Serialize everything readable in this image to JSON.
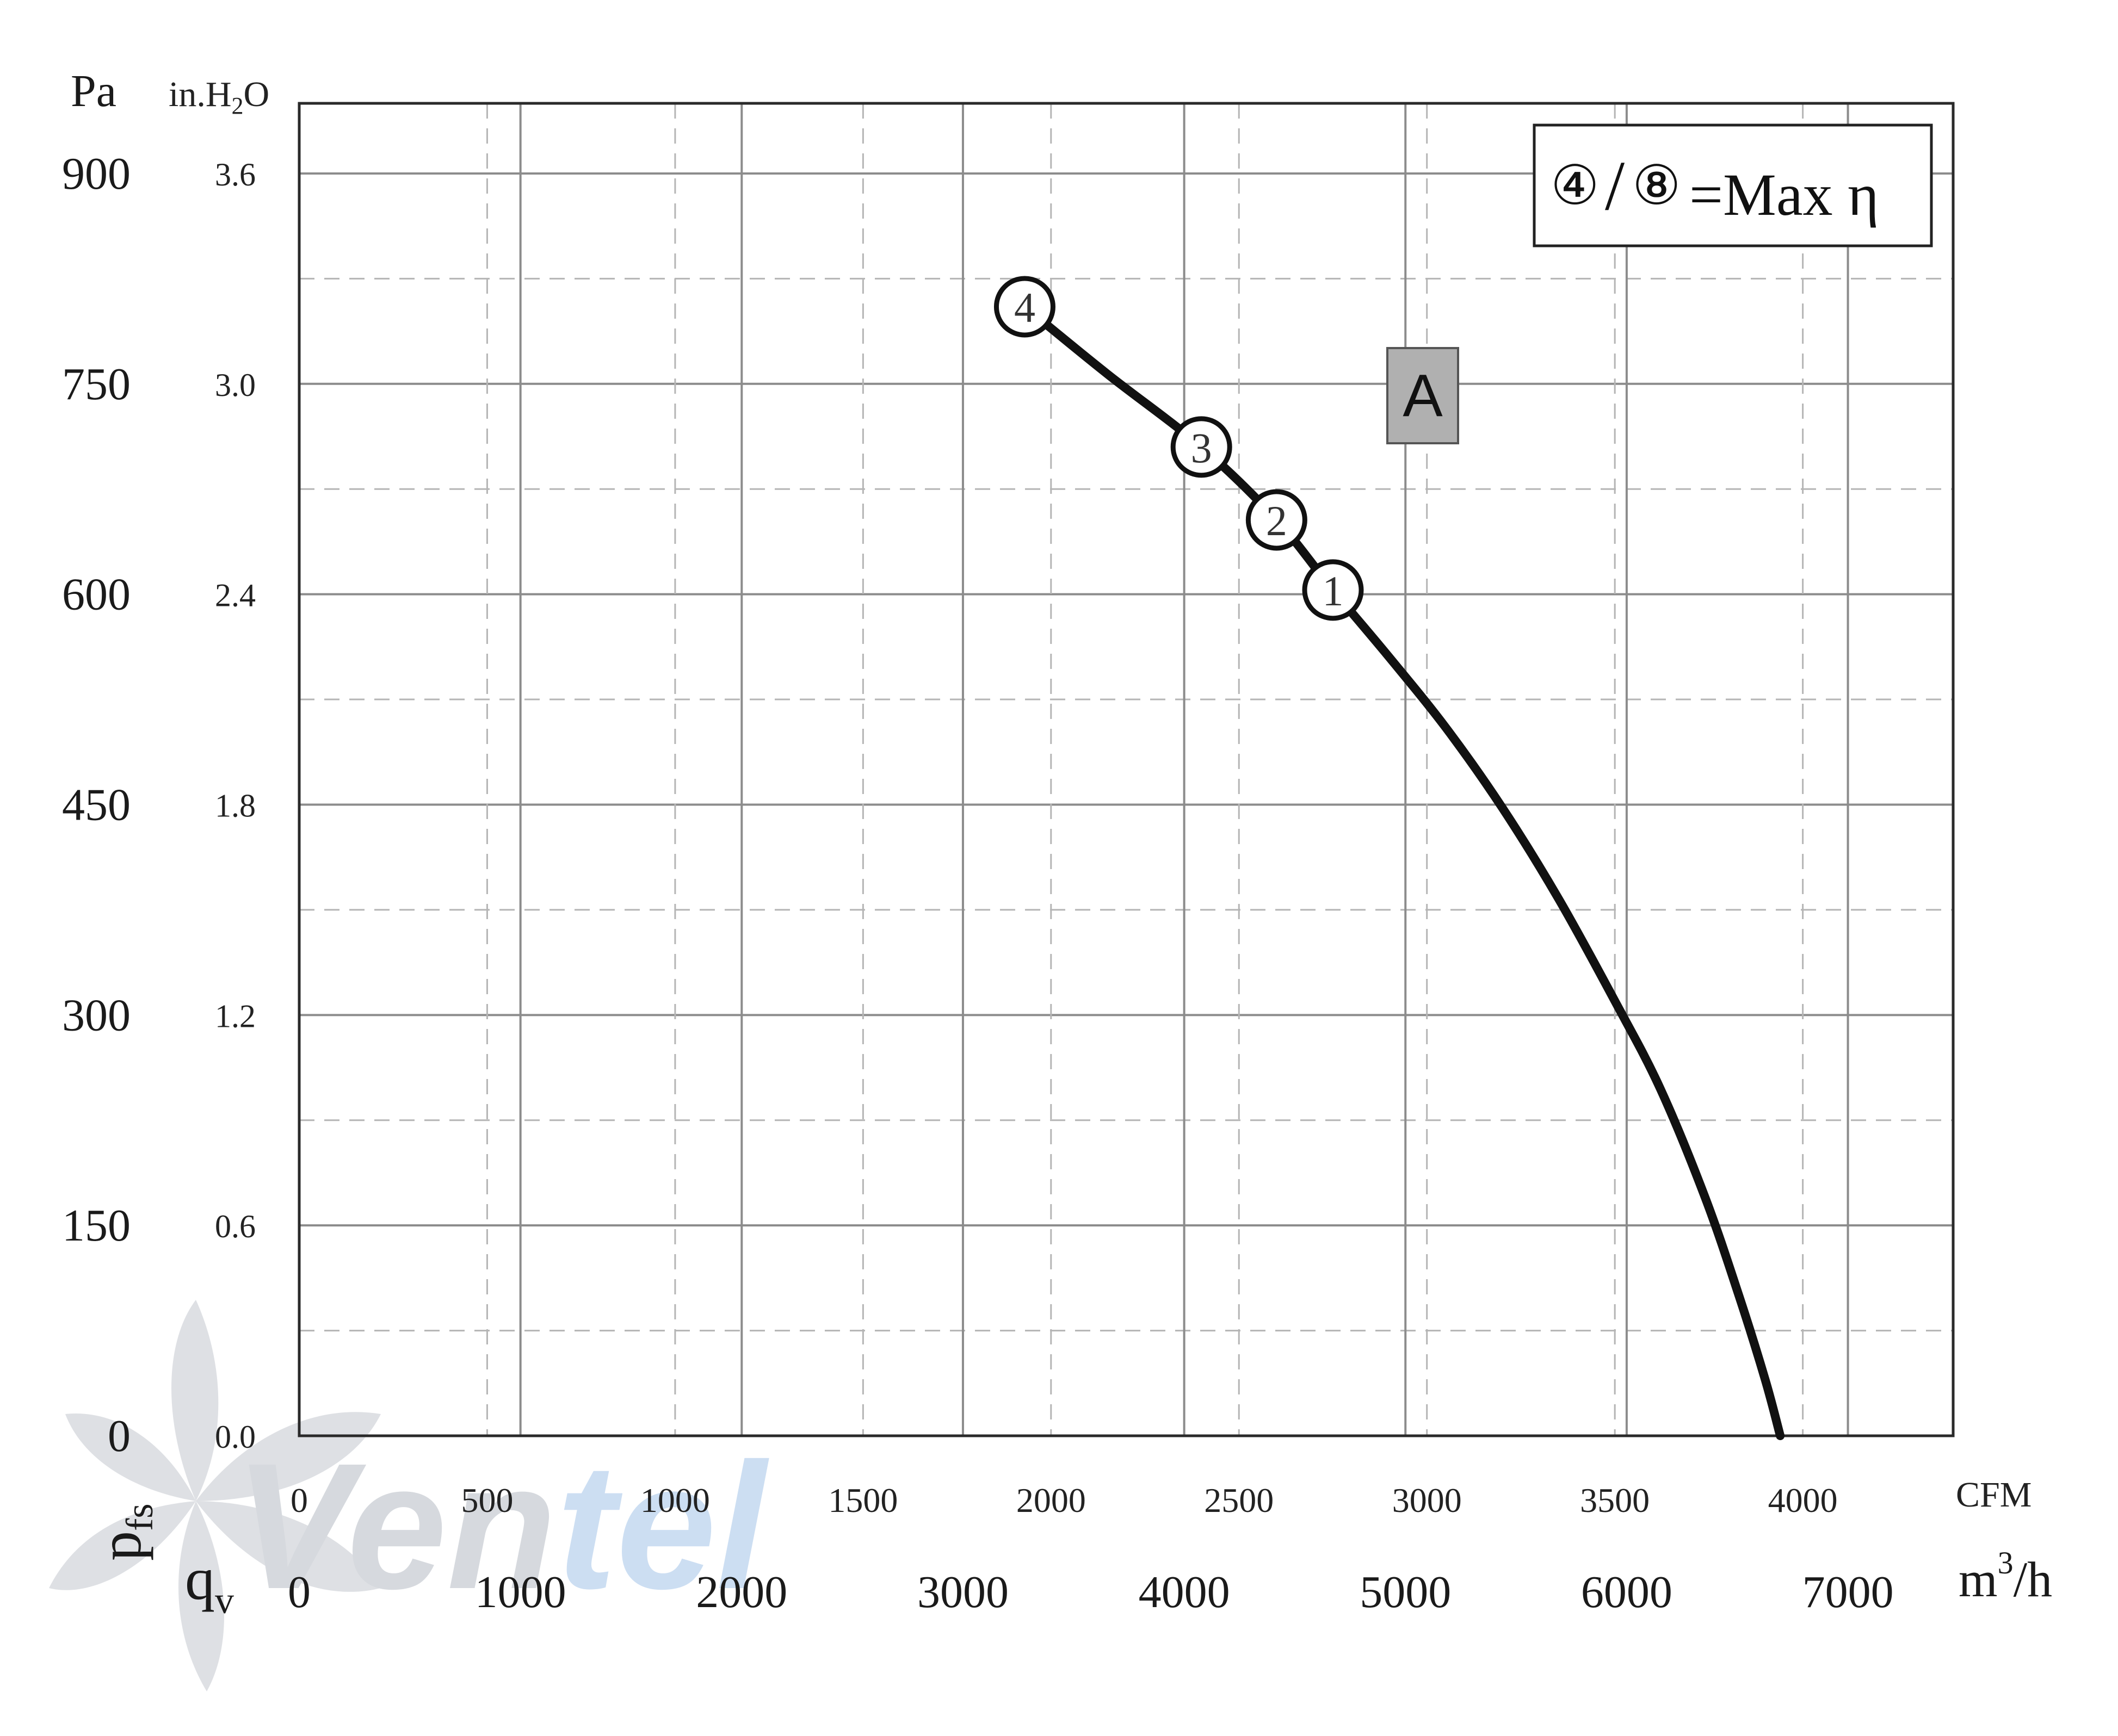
{
  "chart_data": {
    "type": "line",
    "series": [
      {
        "name": "A",
        "x": [
          1930,
          2150,
          2400,
          2600,
          2750,
          2900,
          3050,
          3200,
          3350,
          3500,
          3620,
          3740,
          3830,
          3900,
          3940
        ],
        "y": [
          805,
          757,
          705,
          653,
          603,
          555,
          505,
          448,
          383,
          310,
          248,
          170,
          100,
          40,
          0
        ]
      }
    ],
    "operating_points": [
      {
        "label": "4",
        "x": 1930,
        "y": 805
      },
      {
        "label": "3",
        "x": 2400,
        "y": 705
      },
      {
        "label": "2",
        "x": 2600,
        "y": 653
      },
      {
        "label": "1",
        "x": 2750,
        "y": 603
      }
    ],
    "x_axis": {
      "unit": "CFM",
      "range": [
        0,
        4400
      ],
      "ticks": [
        "0",
        "500",
        "1000",
        "1500",
        "2000",
        "2500",
        "3000",
        "3500",
        "4000"
      ],
      "tick_values": [
        0,
        500,
        1000,
        1500,
        2000,
        2500,
        3000,
        3500,
        4000
      ]
    },
    "x_axis_secondary": {
      "symbol": "q",
      "subscript": "v",
      "unit_base": "m",
      "unit_sup": "3",
      "unit_tail": "/h",
      "ticks": [
        "0",
        "1000",
        "2000",
        "3000",
        "4000",
        "5000",
        "6000",
        "7000"
      ],
      "tick_values": [
        0,
        1000,
        2000,
        3000,
        4000,
        5000,
        6000,
        7000
      ],
      "cfm_per_unit": 0.588578
    },
    "y_axis": {
      "unit": "Pa",
      "range": [
        0,
        950
      ],
      "ticks": [
        "0",
        "150",
        "300",
        "450",
        "600",
        "750",
        "900"
      ],
      "tick_values": [
        0,
        150,
        300,
        450,
        600,
        750,
        900
      ]
    },
    "y_axis_secondary": {
      "unit_base": "in.H",
      "unit_sub": "2",
      "unit_tail": "O",
      "ticks": [
        "0.0",
        "0.6",
        "1.2",
        "1.8",
        "2.4",
        "3.0",
        "3.6"
      ],
      "tick_values": [
        0,
        0.6,
        1.2,
        1.8,
        2.4,
        3.0,
        3.6
      ],
      "pa_per_unit": 250
    },
    "y_symbol": {
      "letter": "p",
      "subscript": "fs"
    },
    "curve_label": "A",
    "legend": {
      "mark_left": "④",
      "slash": "/",
      "mark_right": "⑧",
      "text": "=Max η"
    },
    "watermark": {
      "text_gray": "Ven",
      "text_blue": "tel"
    },
    "grid": true,
    "colors": {
      "curve": "#111111",
      "grid": "#8c8c8c",
      "grid_minor": "#b5b5b5",
      "label_box": "#b0b0b0",
      "watermark_gray": "#c9cdd3",
      "watermark_blue": "#bcd3ee"
    }
  }
}
